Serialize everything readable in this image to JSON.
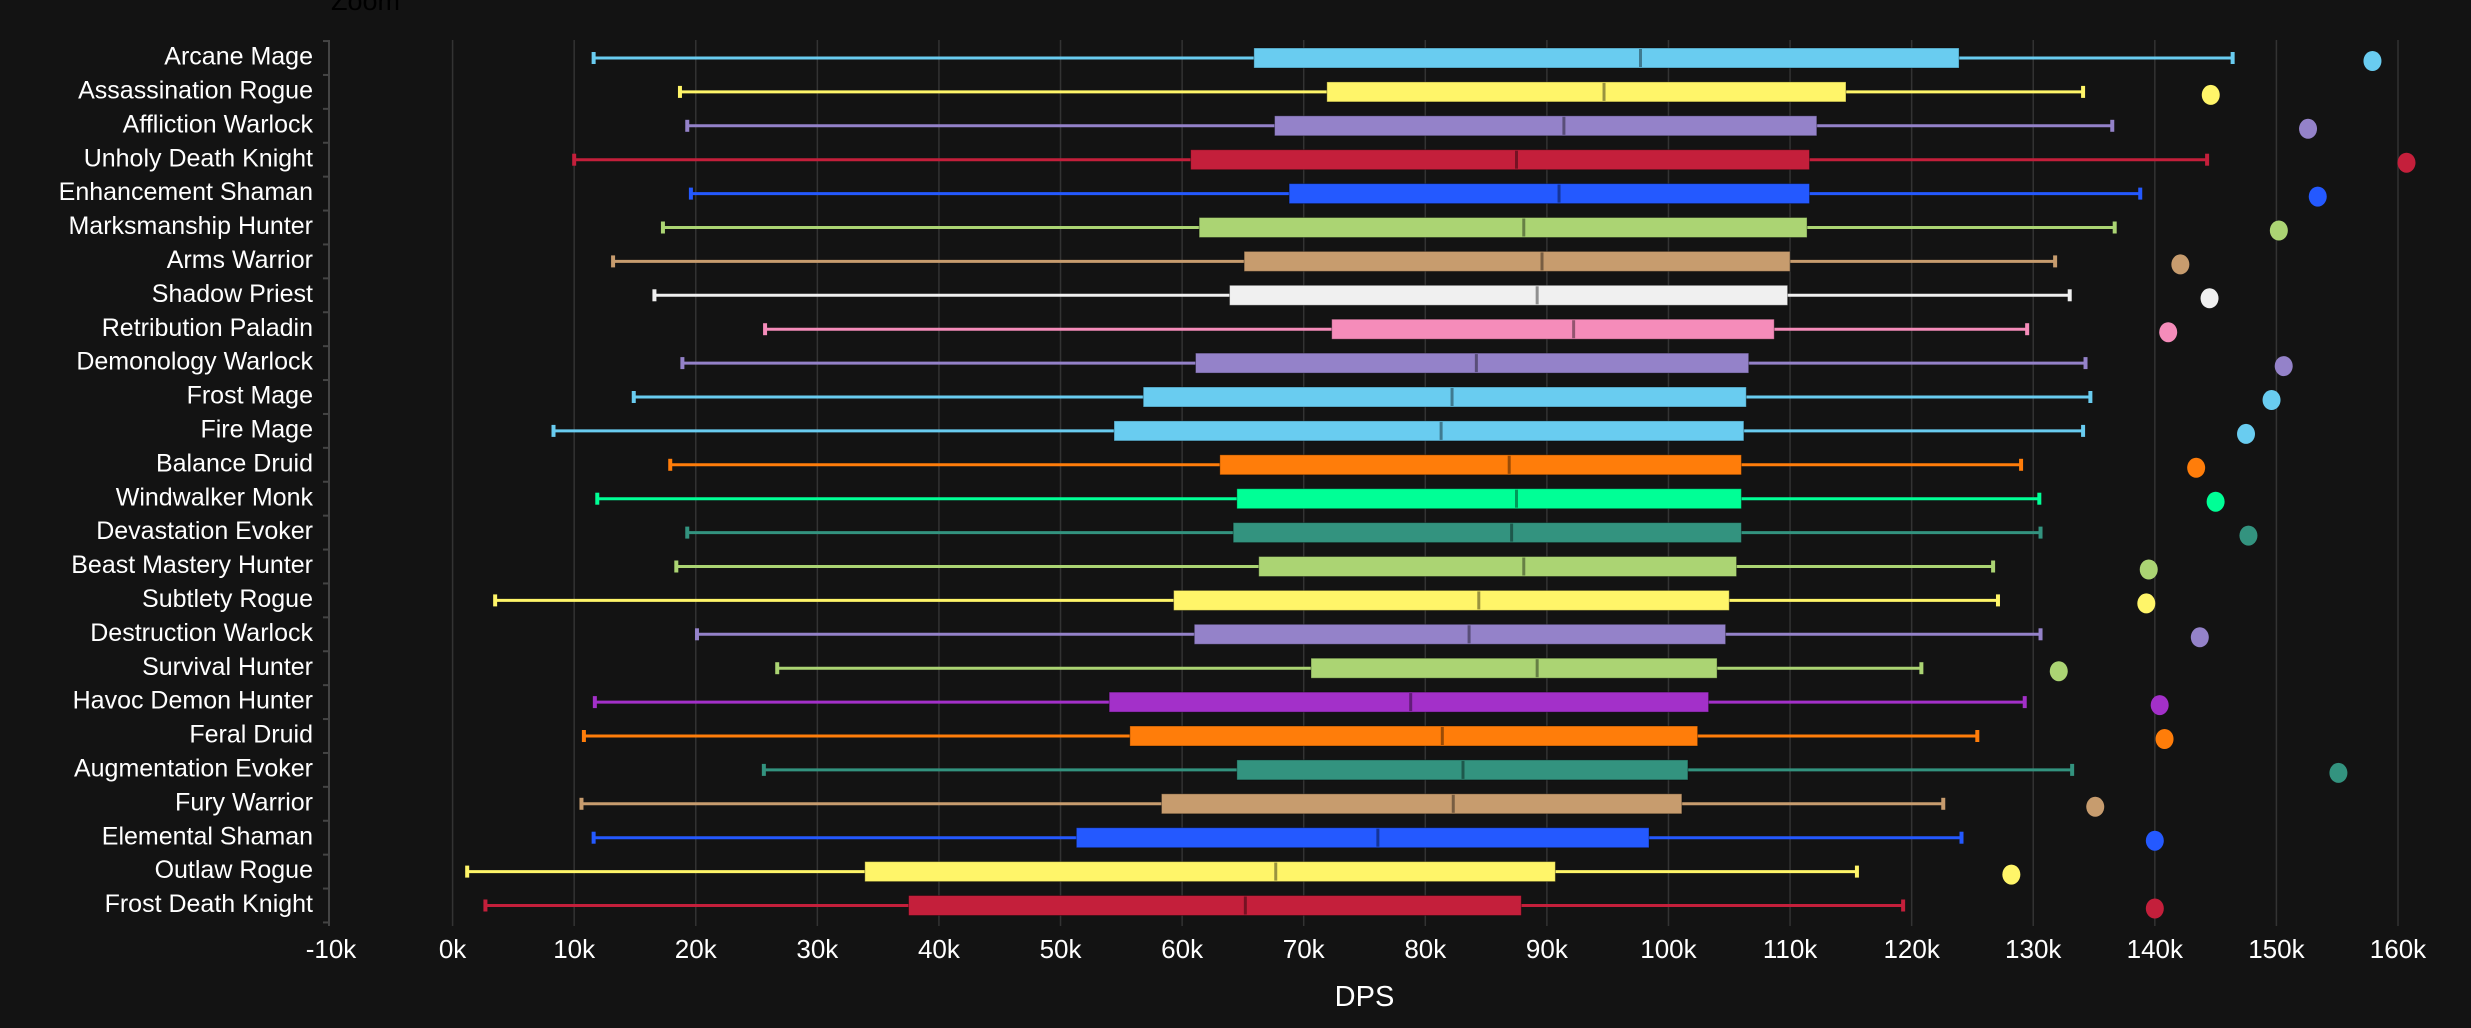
{
  "zoom_label": "Zoom",
  "chart_data": {
    "type": "box",
    "orientation": "horizontal",
    "title": "",
    "xlabel": "DPS",
    "ylabel": "",
    "xlim": [
      -10000,
      160000
    ],
    "xticks": [
      -10000,
      0,
      10000,
      20000,
      30000,
      40000,
      50000,
      60000,
      70000,
      80000,
      90000,
      100000,
      110000,
      120000,
      130000,
      140000,
      150000,
      160000
    ],
    "xtick_labels": [
      "-10k",
      "0k",
      "10k",
      "20k",
      "30k",
      "40k",
      "50k",
      "60k",
      "70k",
      "80k",
      "90k",
      "100k",
      "110k",
      "120k",
      "130k",
      "140k",
      "150k",
      "160k"
    ],
    "grid": "vertical",
    "series": [
      {
        "name": "Arcane Mage",
        "color": "#69ccf0",
        "min": 11600,
        "q1": 65900,
        "median": 97700,
        "q3": 123900,
        "max": 146400,
        "outlier": 157900
      },
      {
        "name": "Assassination Rogue",
        "color": "#fff569",
        "min": 18700,
        "q1": 71900,
        "median": 94700,
        "q3": 114600,
        "max": 134100,
        "outlier": 144600
      },
      {
        "name": "Affliction Warlock",
        "color": "#9482c9",
        "min": 19300,
        "q1": 67600,
        "median": 91400,
        "q3": 112200,
        "max": 136500,
        "outlier": 152600
      },
      {
        "name": "Unholy Death Knight",
        "color": "#c41f3b",
        "min": 10000,
        "q1": 60700,
        "median": 87500,
        "q3": 111600,
        "max": 144300,
        "outlier": 160700
      },
      {
        "name": "Enhancement Shaman",
        "color": "#2459ff",
        "min": 19600,
        "q1": 68800,
        "median": 91000,
        "q3": 111600,
        "max": 138800,
        "outlier": 153400
      },
      {
        "name": "Marksmanship Hunter",
        "color": "#abd473",
        "min": 17300,
        "q1": 61400,
        "median": 88100,
        "q3": 111400,
        "max": 136700,
        "outlier": 150200
      },
      {
        "name": "Arms Warrior",
        "color": "#c79c6e",
        "min": 13200,
        "q1": 65100,
        "median": 89600,
        "q3": 110000,
        "max": 131800,
        "outlier": 142100
      },
      {
        "name": "Shadow Priest",
        "color": "#f0f0f0",
        "min": 16600,
        "q1": 63900,
        "median": 89200,
        "q3": 109800,
        "max": 133000,
        "outlier": 144500
      },
      {
        "name": "Retribution Paladin",
        "color": "#f58cba",
        "min": 25700,
        "q1": 72300,
        "median": 92200,
        "q3": 108700,
        "max": 129500,
        "outlier": 141100
      },
      {
        "name": "Demonology Warlock",
        "color": "#9482c9",
        "min": 18900,
        "q1": 61100,
        "median": 84200,
        "q3": 106600,
        "max": 134300,
        "outlier": 150600
      },
      {
        "name": "Frost Mage",
        "color": "#69ccf0",
        "min": 14900,
        "q1": 56800,
        "median": 82200,
        "q3": 106400,
        "max": 134700,
        "outlier": 149600
      },
      {
        "name": "Fire Mage",
        "color": "#69ccf0",
        "min": 8300,
        "q1": 54400,
        "median": 81300,
        "q3": 106200,
        "max": 134100,
        "outlier": 147500
      },
      {
        "name": "Balance Druid",
        "color": "#ff7d0a",
        "min": 17900,
        "q1": 63100,
        "median": 86900,
        "q3": 106000,
        "max": 129000,
        "outlier": 143400
      },
      {
        "name": "Windwalker Monk",
        "color": "#00ff96",
        "min": 11900,
        "q1": 64500,
        "median": 87500,
        "q3": 106000,
        "max": 130500,
        "outlier": 145000
      },
      {
        "name": "Devastation Evoker",
        "color": "#33937f",
        "min": 19300,
        "q1": 64200,
        "median": 87100,
        "q3": 106000,
        "max": 130600,
        "outlier": 147700
      },
      {
        "name": "Beast Mastery Hunter",
        "color": "#abd473",
        "min": 18400,
        "q1": 66300,
        "median": 88100,
        "q3": 105600,
        "max": 126700,
        "outlier": 139500
      },
      {
        "name": "Subtlety Rogue",
        "color": "#fff569",
        "min": 3500,
        "q1": 59300,
        "median": 84400,
        "q3": 105000,
        "max": 127100,
        "outlier": 139300
      },
      {
        "name": "Destruction Warlock",
        "color": "#9482c9",
        "min": 20100,
        "q1": 61000,
        "median": 83600,
        "q3": 104700,
        "max": 130600,
        "outlier": 143700
      },
      {
        "name": "Survival Hunter",
        "color": "#abd473",
        "min": 26700,
        "q1": 70600,
        "median": 89200,
        "q3": 104000,
        "max": 120800,
        "outlier": 132100
      },
      {
        "name": "Havoc Demon Hunter",
        "color": "#a330c9",
        "min": 11700,
        "q1": 54000,
        "median": 78800,
        "q3": 103300,
        "max": 129300,
        "outlier": 140400
      },
      {
        "name": "Feral Druid",
        "color": "#ff7d0a",
        "min": 10800,
        "q1": 55700,
        "median": 81400,
        "q3": 102400,
        "max": 125400,
        "outlier": 140800
      },
      {
        "name": "Augmentation Evoker",
        "color": "#33937f",
        "min": 25600,
        "q1": 64500,
        "median": 83100,
        "q3": 101600,
        "max": 133200,
        "outlier": 155100
      },
      {
        "name": "Fury Warrior",
        "color": "#c79c6e",
        "min": 10600,
        "q1": 58300,
        "median": 82300,
        "q3": 101100,
        "max": 122600,
        "outlier": 135100
      },
      {
        "name": "Elemental Shaman",
        "color": "#2459ff",
        "min": 11600,
        "q1": 51300,
        "median": 76100,
        "q3": 98400,
        "max": 124100,
        "outlier": 140000
      },
      {
        "name": "Outlaw Rogue",
        "color": "#fff569",
        "min": 1200,
        "q1": 33900,
        "median": 67700,
        "q3": 90700,
        "max": 115500,
        "outlier": 128200
      },
      {
        "name": "Frost Death Knight",
        "color": "#c41f3b",
        "min": 2700,
        "q1": 37500,
        "median": 65200,
        "q3": 87900,
        "max": 119300,
        "outlier": 140000
      }
    ]
  }
}
